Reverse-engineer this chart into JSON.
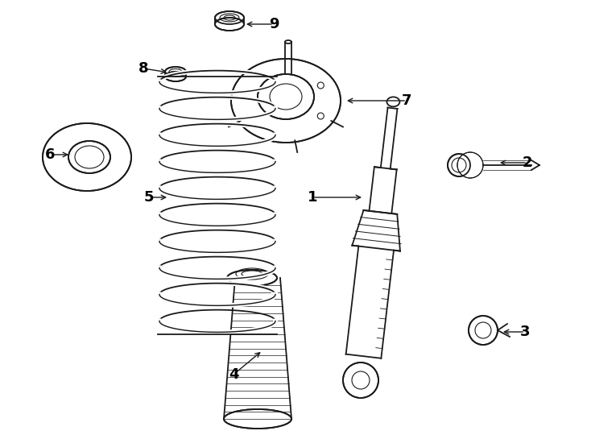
{
  "background_color": "#ffffff",
  "line_color": "#1a1a1a",
  "label_color": "#000000",
  "fig_width": 7.34,
  "fig_height": 5.4,
  "dpi": 100
}
